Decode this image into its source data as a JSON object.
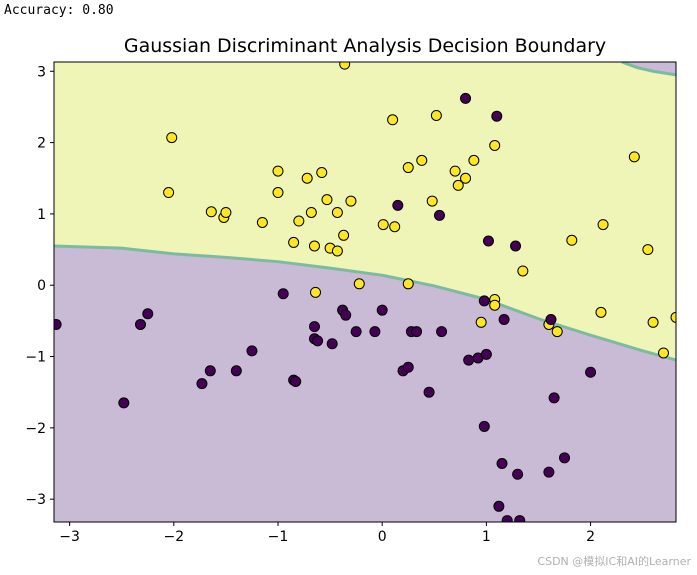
{
  "output": {
    "text": "Accuracy: 0.80"
  },
  "watermark": "CSDN @模拟IC和AI的Learner",
  "chart_data": {
    "type": "scatter",
    "title": "Gaussian Discriminant Analysis Decision Boundary",
    "xlabel": "",
    "ylabel": "",
    "xlim": [
      -3.15,
      2.82
    ],
    "ylim": [
      -3.32,
      3.13
    ],
    "xticks": [
      -3,
      -2,
      -1,
      0,
      1,
      2
    ],
    "yticks": [
      -3,
      -2,
      -1,
      0,
      1,
      2,
      3
    ],
    "grid": false,
    "colors": {
      "region_yellow": "#eef5b6",
      "region_purple": "#c9bad6",
      "boundary": "#7dbba0",
      "point_yellow": "#fde725",
      "point_purple": "#440154",
      "edge": "#000000"
    },
    "boundary_line": [
      [
        -3.15,
        0.55
      ],
      [
        -2.5,
        0.52
      ],
      [
        -2.0,
        0.44
      ],
      [
        -1.5,
        0.39
      ],
      [
        -1.0,
        0.33
      ],
      [
        -0.5,
        0.24
      ],
      [
        0.0,
        0.14
      ],
      [
        0.5,
        -0.01
      ],
      [
        1.0,
        -0.2
      ],
      [
        1.5,
        -0.47
      ],
      [
        2.0,
        -0.7
      ],
      [
        2.5,
        -0.92
      ],
      [
        2.82,
        -1.05
      ]
    ],
    "boundary_top": [
      [
        2.3,
        3.13
      ],
      [
        2.45,
        3.05
      ],
      [
        2.6,
        3.0
      ],
      [
        2.82,
        2.95
      ]
    ],
    "series": [
      {
        "class": 1,
        "points": [
          [
            -2.05,
            1.3
          ],
          [
            -2.02,
            2.07
          ],
          [
            -1.64,
            1.03
          ],
          [
            -1.52,
            0.95
          ],
          [
            -1.5,
            1.02
          ],
          [
            -1.15,
            0.88
          ],
          [
            -1.0,
            1.6
          ],
          [
            -1.0,
            1.3
          ],
          [
            -0.85,
            0.6
          ],
          [
            -0.8,
            0.9
          ],
          [
            -0.72,
            1.5
          ],
          [
            -0.68,
            1.02
          ],
          [
            -0.65,
            0.55
          ],
          [
            -0.58,
            1.58
          ],
          [
            -0.53,
            1.2
          ],
          [
            -0.5,
            0.52
          ],
          [
            -0.43,
            0.48
          ],
          [
            -0.43,
            1.02
          ],
          [
            -0.37,
            0.7
          ],
          [
            -0.3,
            1.18
          ],
          [
            -0.22,
            0.02
          ],
          [
            -0.36,
            3.1
          ],
          [
            -0.64,
            -0.1
          ],
          [
            0.01,
            0.85
          ],
          [
            0.12,
            0.82
          ],
          [
            0.1,
            2.32
          ],
          [
            0.25,
            1.65
          ],
          [
            0.38,
            1.75
          ],
          [
            0.48,
            1.18
          ],
          [
            0.52,
            2.38
          ],
          [
            0.7,
            1.6
          ],
          [
            0.73,
            1.4
          ],
          [
            0.8,
            1.5
          ],
          [
            0.88,
            1.75
          ],
          [
            1.08,
            1.96
          ],
          [
            0.95,
            -0.52
          ],
          [
            1.08,
            -0.2
          ],
          [
            1.08,
            -0.28
          ],
          [
            1.35,
            0.2
          ],
          [
            1.6,
            -0.55
          ],
          [
            1.68,
            -0.65
          ],
          [
            1.82,
            0.63
          ],
          [
            2.1,
            -0.38
          ],
          [
            2.12,
            0.85
          ],
          [
            2.42,
            1.8
          ],
          [
            2.55,
            0.5
          ],
          [
            2.6,
            -0.52
          ],
          [
            2.7,
            -0.95
          ],
          [
            2.82,
            -0.45
          ],
          [
            0.25,
            0.02
          ]
        ]
      },
      {
        "class": 0,
        "points": [
          [
            -3.13,
            -0.55
          ],
          [
            -2.48,
            -1.65
          ],
          [
            -2.32,
            -0.55
          ],
          [
            -2.25,
            -0.4
          ],
          [
            -1.73,
            -1.38
          ],
          [
            -1.65,
            -1.2
          ],
          [
            -1.4,
            -1.2
          ],
          [
            -1.25,
            -0.92
          ],
          [
            -0.95,
            -0.12
          ],
          [
            -0.85,
            -1.33
          ],
          [
            -0.83,
            -1.35
          ],
          [
            -0.65,
            -0.58
          ],
          [
            -0.65,
            -0.75
          ],
          [
            -0.62,
            -0.78
          ],
          [
            -0.48,
            -0.82
          ],
          [
            -0.38,
            -0.35
          ],
          [
            -0.35,
            -0.42
          ],
          [
            -0.25,
            -0.65
          ],
          [
            -0.07,
            -0.65
          ],
          [
            0.0,
            -0.35
          ],
          [
            0.15,
            1.12
          ],
          [
            0.2,
            -1.2
          ],
          [
            0.25,
            -1.15
          ],
          [
            0.28,
            -0.65
          ],
          [
            0.33,
            -0.65
          ],
          [
            0.45,
            -1.5
          ],
          [
            0.55,
            0.98
          ],
          [
            0.57,
            -0.65
          ],
          [
            0.8,
            2.62
          ],
          [
            0.83,
            -1.05
          ],
          [
            0.92,
            -1.02
          ],
          [
            0.98,
            -1.98
          ],
          [
            0.98,
            -0.22
          ],
          [
            1.0,
            -0.97
          ],
          [
            1.02,
            0.62
          ],
          [
            1.1,
            2.37
          ],
          [
            1.12,
            -3.1
          ],
          [
            1.15,
            -2.5
          ],
          [
            1.17,
            -0.48
          ],
          [
            1.2,
            -3.3
          ],
          [
            1.3,
            -2.65
          ],
          [
            1.32,
            -3.3
          ],
          [
            1.28,
            0.55
          ],
          [
            1.6,
            -2.62
          ],
          [
            1.62,
            -0.48
          ],
          [
            1.65,
            -1.58
          ],
          [
            1.75,
            -2.42
          ],
          [
            2.0,
            -1.22
          ]
        ]
      }
    ]
  }
}
